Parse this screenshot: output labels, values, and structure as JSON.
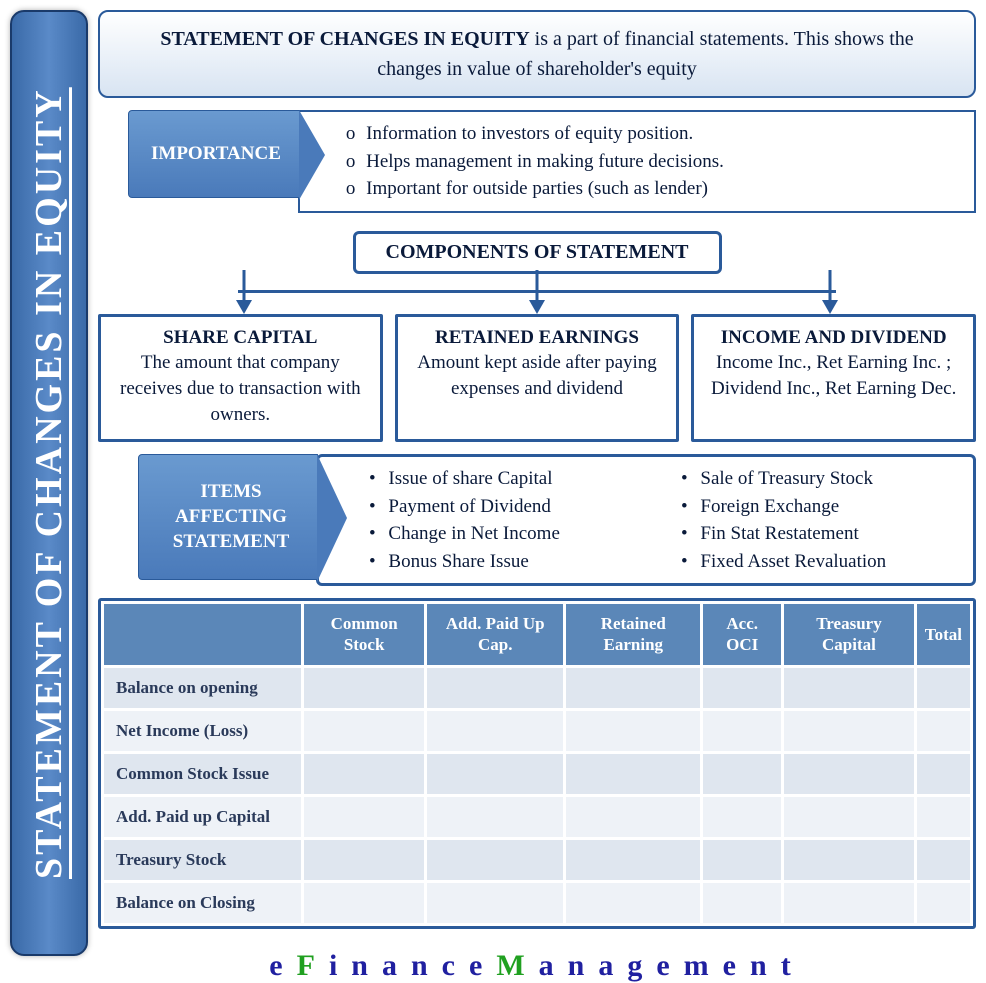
{
  "colors": {
    "primary_border": "#2a5a9a",
    "header_bg_light": "#6a9ad0",
    "header_bg_dark": "#4a7aba",
    "table_header_bg": "#5b87b8",
    "table_row_odd": "#dfe6ef",
    "table_row_even": "#eef2f7",
    "intro_grad_end": "#d8e4f2",
    "text_dark": "#0a1a3a",
    "footer_blue": "#2020a0",
    "footer_green": "#20a020"
  },
  "vertical_title": "STATEMENT OF CHANGES IN EQUITY",
  "intro": {
    "bold": "STATEMENT OF CHANGES IN EQUITY",
    "rest": " is a part of financial statements. This shows the changes in value of shareholder's equity"
  },
  "importance": {
    "label": "IMPORTANCE",
    "items": [
      "Information to investors of equity position.",
      "Helps management in making future decisions.",
      "Important for outside parties (such as lender)"
    ]
  },
  "components": {
    "header": "COMPONENTS OF STATEMENT",
    "boxes": [
      {
        "title": "SHARE CAPITAL",
        "desc": "The amount that company receives due to transaction with owners."
      },
      {
        "title": "RETAINED EARNINGS",
        "desc": "Amount kept aside after paying expenses and dividend"
      },
      {
        "title": "INCOME AND DIVIDEND",
        "desc": "Income Inc., Ret Earning Inc. ; Dividend Inc., Ret Earning Dec."
      }
    ]
  },
  "items_affecting": {
    "label": "ITEMS AFFECTING STATEMENT",
    "col1": [
      "Issue of share Capital",
      "Payment of Dividend",
      "Change in Net Income",
      "Bonus Share Issue"
    ],
    "col2": [
      "Sale of Treasury Stock",
      "Foreign Exchange",
      "Fin Stat Restatement",
      "Fixed Asset Revaluation"
    ]
  },
  "table": {
    "columns": [
      "",
      "Common Stock",
      "Add. Paid Up Cap.",
      "Retained Earning",
      "Acc. OCI",
      "Treasury Capital",
      "Total"
    ],
    "rows": [
      [
        "Balance on opening",
        "",
        "",
        "",
        "",
        "",
        ""
      ],
      [
        "Net Income (Loss)",
        "",
        "",
        "",
        "",
        "",
        ""
      ],
      [
        "Common Stock Issue",
        "",
        "",
        "",
        "",
        "",
        ""
      ],
      [
        "Add. Paid up Capital",
        "",
        "",
        "",
        "",
        "",
        ""
      ],
      [
        "Treasury Stock",
        "",
        "",
        "",
        "",
        "",
        ""
      ],
      [
        "Balance on Closing",
        "",
        "",
        "",
        "",
        "",
        ""
      ]
    ]
  },
  "footer": "eFinanceManagement"
}
